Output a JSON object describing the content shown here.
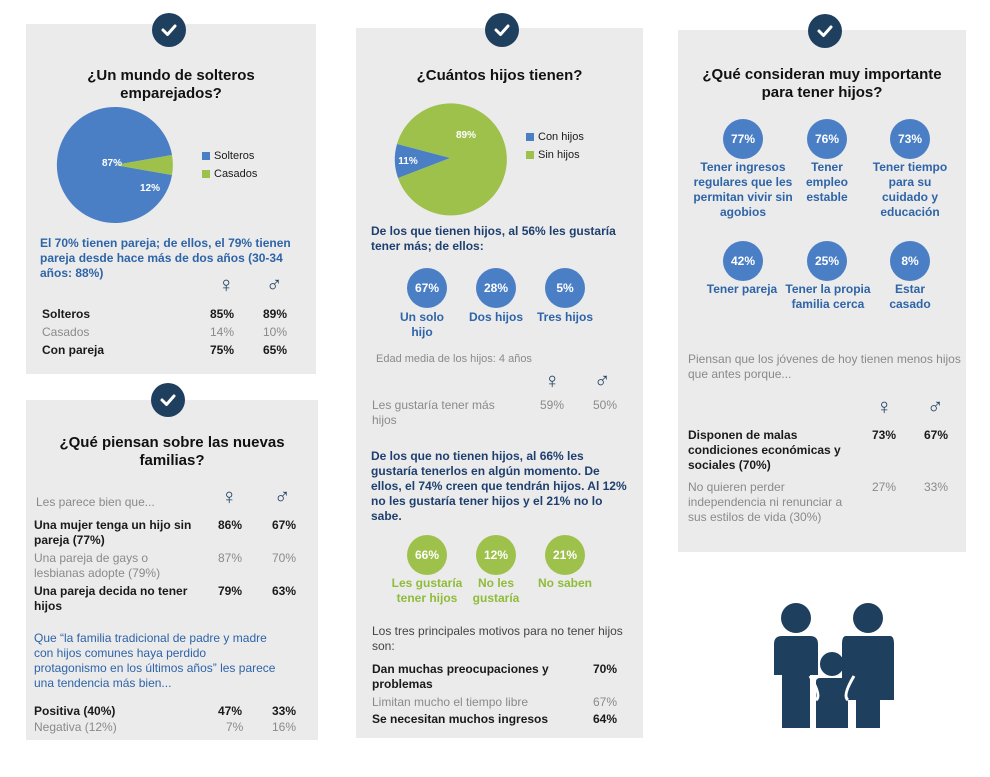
{
  "colors": {
    "navy": "#1f3f5f",
    "blue": "#4a7fc6",
    "green": "#9dc14a",
    "panel": "#ebebeb"
  },
  "icons": {
    "check": "check-icon",
    "female": "female-icon",
    "male": "male-icon",
    "family": "family-icon"
  },
  "panel1": {
    "title": "¿Un mundo de solteros emparejados?",
    "chart_data": {
      "type": "pie",
      "categories": [
        "Solteros",
        "Casados"
      ],
      "values": [
        87,
        12
      ],
      "labels": [
        "87%",
        "12%"
      ]
    },
    "note": "El 70% tienen pareja; de ellos, el 79% tienen pareja desde hace más de dos años (30-34 años: 88%)",
    "rows": [
      {
        "label": "Solteros",
        "f": "85%",
        "m": "89%"
      },
      {
        "label": "Casados",
        "f": "14%",
        "m": "10%"
      },
      {
        "label": "Con pareja",
        "f": "75%",
        "m": "65%"
      }
    ]
  },
  "panel2": {
    "title": "¿Qué  piensan sobre las nuevas familias?",
    "intro": "Les parece bien que...",
    "rows": [
      {
        "label": "Una mujer tenga un hijo sin pareja (77%)",
        "f": "86%",
        "m": "67%"
      },
      {
        "label": "Una pareja de gays o lesbianas adopte (79%)",
        "f": "87%",
        "m": "70%"
      },
      {
        "label": "Una pareja decida no tener hijos",
        "f": "79%",
        "m": "63%"
      }
    ],
    "quote": "Que “la familia tradicional de padre y madre con hijos comunes haya perdido protagonismo en los últimos años” les parece una tendencia más bien...",
    "rows2": [
      {
        "label": "Positiva (40%)",
        "f": "47%",
        "m": "33%"
      },
      {
        "label": "Negativa (12%)",
        "f": "7%",
        "m": "16%"
      }
    ]
  },
  "panel3": {
    "title": "¿Cuántos hijos tienen?",
    "chart_data": {
      "type": "pie",
      "categories": [
        "Con hijos",
        "Sin hijos"
      ],
      "values": [
        11,
        89
      ],
      "labels": [
        "11%",
        "89%"
      ]
    },
    "q1": "De los que tienen hijos, al 56% les gustaría tener más; de ellos:",
    "c1": [
      {
        "pct": "67%",
        "label": "Un solo hijo"
      },
      {
        "pct": "28%",
        "label": "Dos hijos"
      },
      {
        "pct": "5%",
        "label": "Tres hijos"
      }
    ],
    "edad": "Edad media de los hijos: 4 años",
    "row": {
      "label": "Les gustaría tener más hijos",
      "f": "59%",
      "m": "50%"
    },
    "q2": "De los que no tienen hijos, al 66% les gustaría tenerlos en algún momento. De ellos, el 74% creen que tendrán hijos. Al 12% no les gustaría tener hijos y el 21% no lo sabe.",
    "c2": [
      {
        "pct": "66%",
        "label": "Les gustaría tener hijos"
      },
      {
        "pct": "12%",
        "label": "No les gustaría"
      },
      {
        "pct": "21%",
        "label": "No saben"
      }
    ],
    "motivos": "Los tres principales  motivos para no tener hijos son:",
    "mrows": [
      {
        "label": "Dan muchas preocupaciones y problemas",
        "v": "70%"
      },
      {
        "label": "Limitan mucho el tiempo libre",
        "v": "67%"
      },
      {
        "label": "Se necesitan muchos ingresos",
        "v": "64%"
      }
    ]
  },
  "panel4": {
    "title": "¿Qué consideran muy importante para tener hijos?",
    "c": [
      {
        "pct": "77%",
        "label": "Tener ingresos regulares que les permitan vivir sin agobios"
      },
      {
        "pct": "76%",
        "label": "Tener empleo estable"
      },
      {
        "pct": "73%",
        "label": "Tener tiempo para su cuidado y educación"
      },
      {
        "pct": "42%",
        "label": "Tener pareja"
      },
      {
        "pct": "25%",
        "label": "Tener la propia familia cerca"
      },
      {
        "pct": "8%",
        "label": "Estar casado"
      }
    ],
    "intro": "Piensan que los jóvenes de hoy tienen menos hijos que antes porque...",
    "rows": [
      {
        "label": "Disponen de malas condiciones económicas y sociales (70%)",
        "f": "73%",
        "m": "67%"
      },
      {
        "label": "No quieren perder independencia ni renunciar a sus estilos de vida (30%)",
        "f": "27%",
        "m": "33%"
      }
    ]
  },
  "sym": {
    "female": "♀",
    "male": "♂"
  }
}
